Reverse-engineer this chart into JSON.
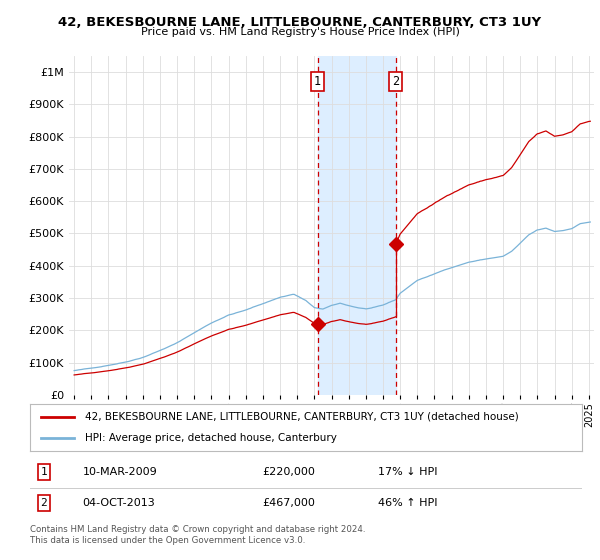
{
  "title": "42, BEKESBOURNE LANE, LITTLEBOURNE, CANTERBURY, CT3 1UY",
  "subtitle": "Price paid vs. HM Land Registry's House Price Index (HPI)",
  "red_label": "42, BEKESBOURNE LANE, LITTLEBOURNE, CANTERBURY, CT3 1UY (detached house)",
  "blue_label": "HPI: Average price, detached house, Canterbury",
  "purchase1_date_num": 2009.19,
  "purchase1_price": 220000,
  "purchase2_date_num": 2013.75,
  "purchase2_price": 467000,
  "ylim": [
    0,
    1000000
  ],
  "xlim_start": 1994.7,
  "xlim_end": 2025.3,
  "footer": "Contains HM Land Registry data © Crown copyright and database right 2024.\nThis data is licensed under the Open Government Licence v3.0.",
  "bg_color": "#ffffff",
  "plot_bg_color": "#ffffff",
  "grid_color": "#dddddd",
  "red_color": "#cc0000",
  "blue_color": "#7ab3d8",
  "shade_color": "#ddeeff",
  "ann1_date": "10-MAR-2009",
  "ann1_price": "£220,000",
  "ann1_hpi": "17% ↓ HPI",
  "ann2_date": "04-OCT-2013",
  "ann2_price": "£467,000",
  "ann2_hpi": "46% ↑ HPI"
}
